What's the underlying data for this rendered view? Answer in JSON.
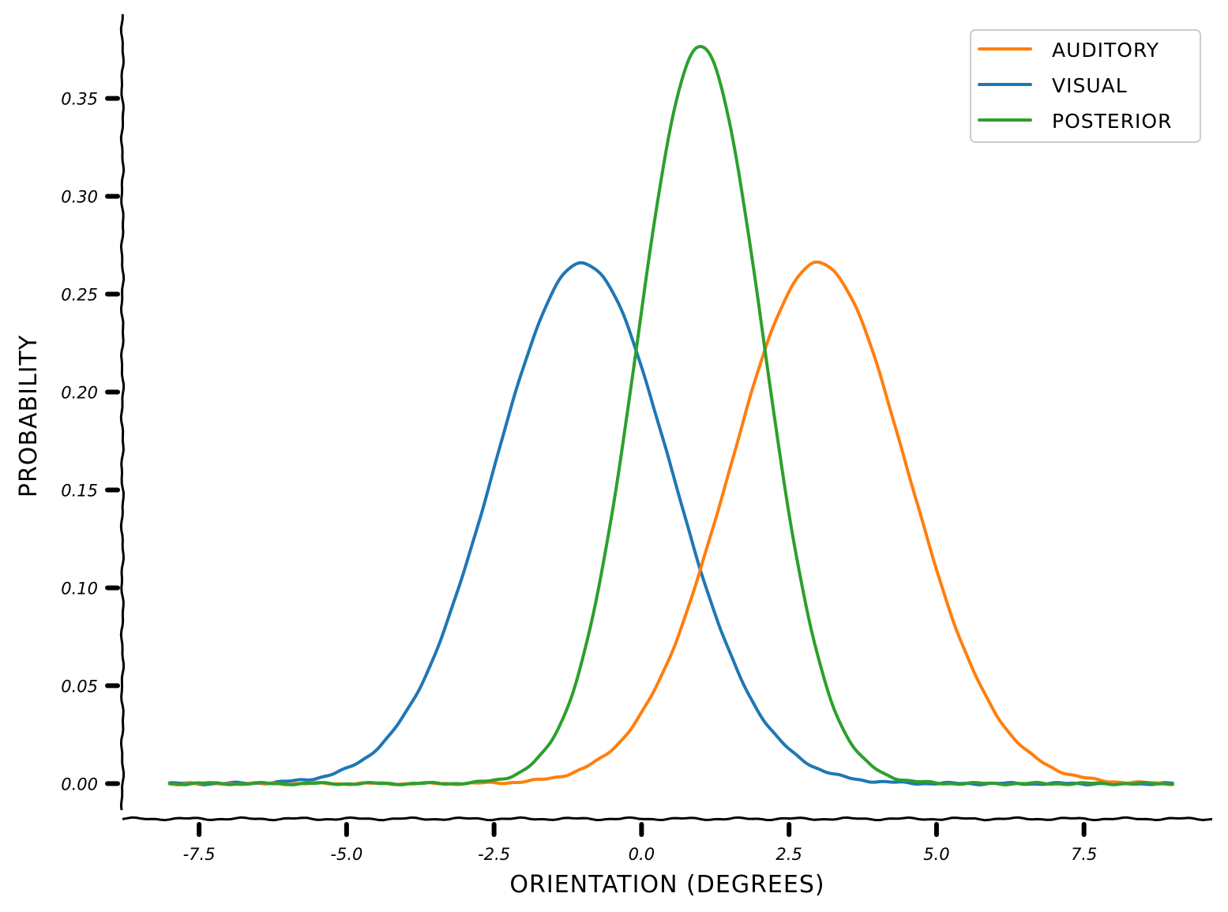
{
  "chart_data": {
    "type": "line",
    "title": "",
    "xlabel": "ORIENTATION (DEGREES)",
    "ylabel": "PROBABILITY",
    "xlim": [
      -8.8,
      9.7
    ],
    "ylim": [
      -0.018,
      0.393
    ],
    "x_ticks": [
      -7.5,
      -5.0,
      -2.5,
      0.0,
      2.5,
      5.0,
      7.5
    ],
    "x_tick_labels": [
      "-7.5",
      "-5.0",
      "-2.5",
      "0.0",
      "2.5",
      "5.0",
      "7.5"
    ],
    "y_ticks": [
      0.0,
      0.05,
      0.1,
      0.15,
      0.2,
      0.25,
      0.3,
      0.35
    ],
    "y_tick_labels": [
      "0.00",
      "0.05",
      "0.10",
      "0.15",
      "0.20",
      "0.25",
      "0.30",
      "0.35"
    ],
    "grid": false,
    "legend_position": "top-right",
    "x_range": [
      -8,
      9
    ],
    "series": [
      {
        "name": "AUDITORY",
        "color": "#ff7f0e",
        "mean": 3.0,
        "sd": 1.5
      },
      {
        "name": "VISUAL",
        "color": "#1f77b4",
        "mean": -1.0,
        "sd": 1.5
      },
      {
        "name": "POSTERIOR",
        "color": "#2ca02c",
        "mean": 1.0,
        "sd": 1.06
      }
    ]
  }
}
